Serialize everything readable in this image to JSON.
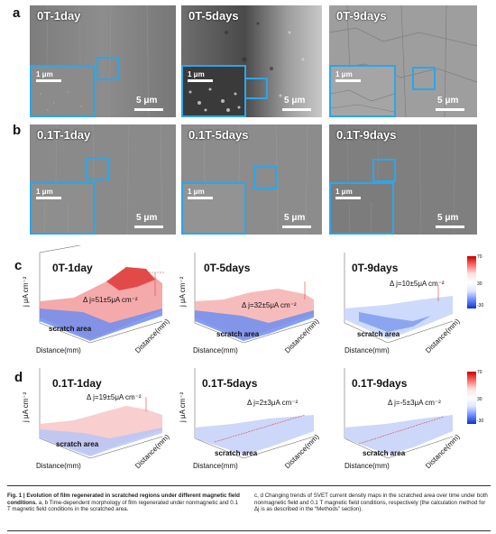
{
  "panels": {
    "a": "a",
    "b": "b",
    "c": "c",
    "d": "d"
  },
  "sem": {
    "inset_scale": "1 μm",
    "main_scale": "5 μm",
    "row_a": [
      "0T-1day",
      "0T-5days",
      "0T-9days"
    ],
    "row_b": [
      "0.1T-1day",
      "0.1T-5days",
      "0.1T-9days"
    ]
  },
  "svet": {
    "ylabel": "j μA cm⁻²",
    "xlabel": "Distance(mm)",
    "scratch_label": "scratch area",
    "row_c": [
      {
        "title": "0T-1day",
        "dj": "Δ j=51±5μA cm⁻²"
      },
      {
        "title": "0T-5days",
        "dj": "Δ j=32±5μA cm⁻²"
      },
      {
        "title": "0T-9days",
        "dj": "Δ j=10±5μA cm⁻²"
      }
    ],
    "row_d": [
      {
        "title": "0.1T-1day",
        "dj": "Δ j=19±5μA cm⁻²"
      },
      {
        "title": "0.1T-5days",
        "dj": "Δ j=2±3μA cm⁻²"
      },
      {
        "title": "0.1T-9days",
        "dj": "Δ j=-5±3μA cm⁻²"
      }
    ],
    "colorbar_ticks": [
      "70",
      "60",
      "50",
      "40",
      "30",
      "20",
      "10",
      "0",
      "-10",
      "-20",
      "-30"
    ],
    "colors": {
      "positive": "#c80000",
      "negative": "#1532c8",
      "neutral": "#ffffff"
    }
  },
  "caption": {
    "fig_label": "Fig. 1 | Evolution of film regenerated in scratched regions under different magnetic field conditions.",
    "left": "a, b Time-dependent morphology of film regenerated under nonmagnetic and 0.1 T magnetic field conditions in the scratched area.",
    "right": "c, d Changing trends of SVET current density maps in the scratched area over time under both nonmagnetic field and 0.1 T magnetic field conditions, respectively (the calculation method for Δj is as described in the “Methods” section)."
  }
}
